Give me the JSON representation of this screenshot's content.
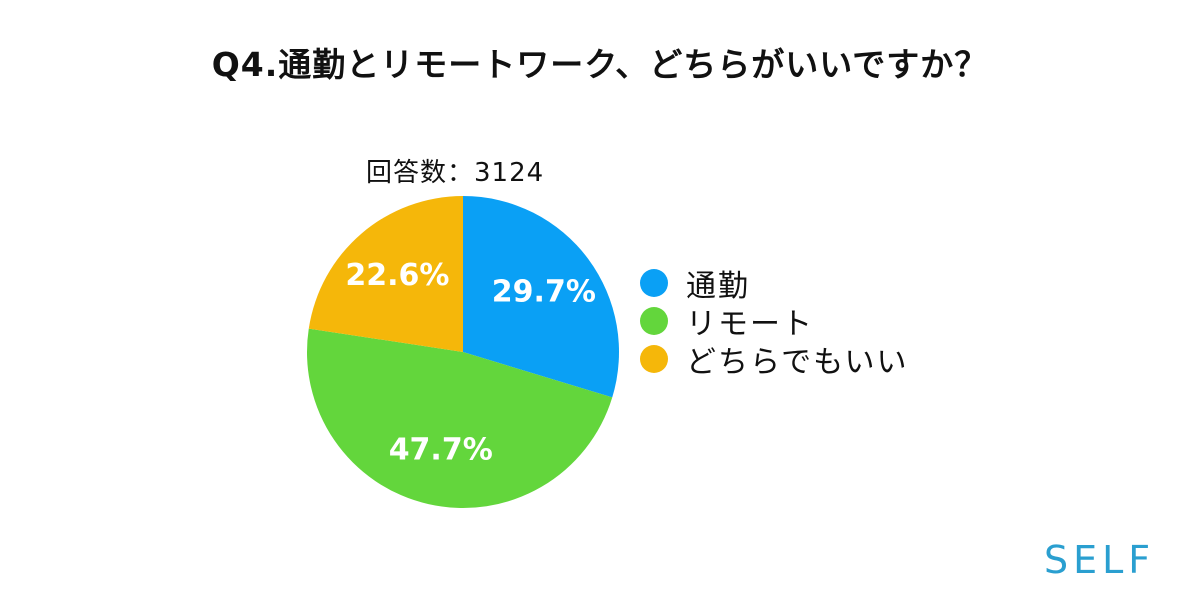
{
  "chart_data": {
    "type": "pie",
    "title": "Q4.通勤とリモートワーク、どちらがいいですか？",
    "subtitle": "回答数：3124",
    "categories": [
      "通勤",
      "リモート",
      "どちらでもいい"
    ],
    "values": [
      29.7,
      47.7,
      22.6
    ],
    "value_labels": [
      "29.7%",
      "47.7%",
      "22.6%"
    ],
    "colors": [
      "#0aa0f5",
      "#63d63c",
      "#f5b70a"
    ],
    "start_angle": "12 o'clock",
    "direction": "clockwise",
    "legend_position": "right"
  },
  "brand": {
    "logo_text": "SELF"
  }
}
